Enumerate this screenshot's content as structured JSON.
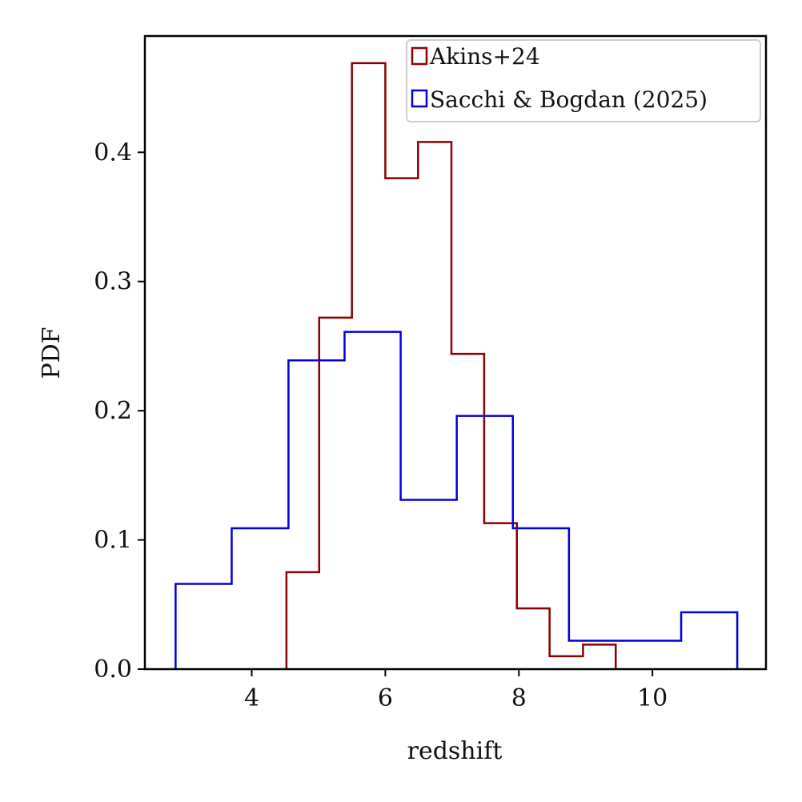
{
  "chart_data": {
    "type": "histogram",
    "title": "",
    "xlabel": "redshift",
    "ylabel": "PDF",
    "xlim": [
      2.4,
      11.7
    ],
    "ylim": [
      0.0,
      0.49
    ],
    "xticks": [
      4,
      6,
      8,
      10
    ],
    "yticks": [
      0.0,
      0.1,
      0.2,
      0.3,
      0.4
    ],
    "xtick_labels": [
      "4",
      "6",
      "8",
      "10"
    ],
    "ytick_labels": [
      "0.0",
      "0.1",
      "0.2",
      "0.3",
      "0.4"
    ],
    "grid": false,
    "legend_position": "top-right",
    "series": [
      {
        "name": "Akins+24",
        "color": "#8b0000",
        "bin_edges": [
          4.52,
          5.01,
          5.5,
          6.0,
          6.49,
          6.99,
          7.48,
          7.97,
          8.46,
          8.96,
          9.45
        ],
        "values": [
          0.075,
          0.272,
          0.469,
          0.38,
          0.408,
          0.244,
          0.113,
          0.047,
          0.01,
          0.019
        ]
      },
      {
        "name": "Sacchi & Bogdan (2025)",
        "color": "#0000dd",
        "bin_edges": [
          2.86,
          3.7,
          4.55,
          5.39,
          6.23,
          7.07,
          7.91,
          8.75,
          9.59,
          10.43,
          11.27
        ],
        "values": [
          0.066,
          0.109,
          0.239,
          0.261,
          0.131,
          0.196,
          0.109,
          0.022,
          0.022,
          0.044
        ]
      }
    ]
  }
}
